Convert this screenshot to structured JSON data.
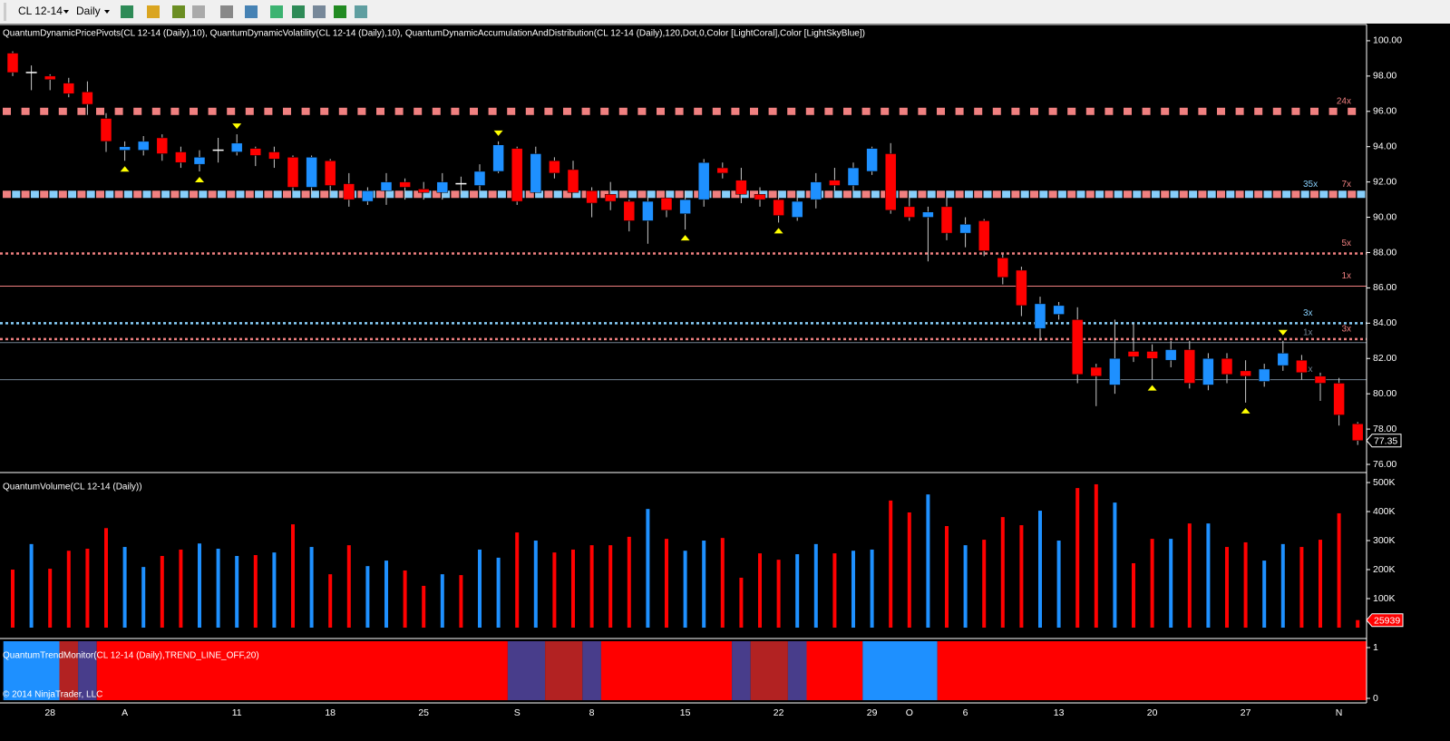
{
  "chart_data": {
    "type": "candlestick",
    "toolbar": {
      "instrument": "CL 12-14",
      "period": "Daily"
    },
    "indicator_label": "QuantumDynamicPricePivots(CL 12-14 (Daily),10), QuantumDynamicVolatility(CL 12-14 (Daily),10), QuantumDynamicAccumulationAndDistribution(CL 12-14 (Daily),120,Dot,0,Color [LightCoral],Color [LightSkyBlue])",
    "copyright": "© 2014 NinjaTrader, LLC",
    "categories": [
      null,
      null,
      "28",
      null,
      null,
      null,
      "A",
      null,
      null,
      null,
      null,
      null,
      "11",
      null,
      null,
      null,
      null,
      "18",
      null,
      null,
      null,
      null,
      "25",
      null,
      null,
      null,
      null,
      "S",
      null,
      null,
      null,
      "8",
      null,
      null,
      null,
      null,
      "15",
      null,
      null,
      null,
      null,
      "22",
      null,
      null,
      null,
      null,
      "29",
      null,
      "O",
      null,
      null,
      "6",
      null,
      null,
      null,
      null,
      "13",
      null,
      null,
      null,
      null,
      "20",
      null,
      null,
      null,
      null,
      "27",
      null,
      null,
      null,
      null,
      "N",
      null
    ],
    "open": [
      99.3,
      98.2,
      98.0,
      97.6,
      97.1,
      95.6,
      93.8,
      93.8,
      94.5,
      93.7,
      93.0,
      93.8,
      93.7,
      93.9,
      93.7,
      93.4,
      91.7,
      93.2,
      91.9,
      90.9,
      91.5,
      92.0,
      91.6,
      91.4,
      91.9,
      91.8,
      92.6,
      93.9,
      91.4,
      93.2,
      92.7,
      91.5,
      91.3,
      90.9,
      89.8,
      91.1,
      90.2,
      91.0,
      92.8,
      92.1,
      91.3,
      91.0,
      90.0,
      91.0,
      92.1,
      91.8,
      92.6,
      93.6,
      90.6,
      90.0,
      90.6,
      89.1,
      89.8,
      87.7,
      87.0,
      83.7,
      84.5,
      84.2,
      81.5,
      80.5,
      82.4,
      82.4,
      81.9,
      82.5,
      80.5,
      82.0,
      81.3,
      80.7,
      81.6,
      81.9,
      81.0,
      80.6,
      78.3
    ],
    "high": [
      99.4,
      98.6,
      98.1,
      97.9,
      97.7,
      95.9,
      94.3,
      94.6,
      94.7,
      94.0,
      93.8,
      94.5,
      94.7,
      94.0,
      94.0,
      93.5,
      93.5,
      93.3,
      92.5,
      91.7,
      92.5,
      92.2,
      92.0,
      92.5,
      92.3,
      93.0,
      94.3,
      94.0,
      94.0,
      93.4,
      93.2,
      91.7,
      92.0,
      91.0,
      91.2,
      91.5,
      91.5,
      93.3,
      93.1,
      92.8,
      91.7,
      91.5,
      91.3,
      92.5,
      92.8,
      93.1,
      94.0,
      94.2,
      91.5,
      90.6,
      91.2,
      90.0,
      89.9,
      87.9,
      87.2,
      85.5,
      85.2,
      84.9,
      81.7,
      84.2,
      84.0,
      82.8,
      83.0,
      83.0,
      82.3,
      82.3,
      81.9,
      81.7,
      83.0,
      82.2,
      81.2,
      80.9,
      78.4
    ],
    "low": [
      98.0,
      97.2,
      97.2,
      96.8,
      95.8,
      93.7,
      93.2,
      93.5,
      93.2,
      92.8,
      92.6,
      93.1,
      93.5,
      92.9,
      92.8,
      91.5,
      91.3,
      91.2,
      90.6,
      90.7,
      90.7,
      91.0,
      91.0,
      91.0,
      91.3,
      91.5,
      92.5,
      90.7,
      91.3,
      92.2,
      91.2,
      90.0,
      90.4,
      89.2,
      88.5,
      90.0,
      89.3,
      90.6,
      92.2,
      90.8,
      90.6,
      89.7,
      89.8,
      90.5,
      91.5,
      91.5,
      92.4,
      90.2,
      89.8,
      87.5,
      88.7,
      88.3,
      87.8,
      86.2,
      84.4,
      83.0,
      84.2,
      80.6,
      79.3,
      80.0,
      81.8,
      80.8,
      81.5,
      80.3,
      80.2,
      80.6,
      79.5,
      80.4,
      81.3,
      80.8,
      79.6,
      78.2,
      77.1
    ],
    "close": [
      98.2,
      98.2,
      97.8,
      97.0,
      96.4,
      94.3,
      94.0,
      94.3,
      93.6,
      93.1,
      93.4,
      93.8,
      94.2,
      93.5,
      93.3,
      91.7,
      93.4,
      91.8,
      91.0,
      91.5,
      92.0,
      91.7,
      91.4,
      92.0,
      91.9,
      92.6,
      94.1,
      90.9,
      93.6,
      92.5,
      91.4,
      90.8,
      90.9,
      89.8,
      90.9,
      90.4,
      91.0,
      93.1,
      92.5,
      91.3,
      91.0,
      90.1,
      90.9,
      92.0,
      91.8,
      92.8,
      93.9,
      90.4,
      90.0,
      90.3,
      89.1,
      89.6,
      88.1,
      86.6,
      85.0,
      85.1,
      85.0,
      81.1,
      81.0,
      82.0,
      82.1,
      82.0,
      82.5,
      80.6,
      82.0,
      81.1,
      81.0,
      81.4,
      82.3,
      81.2,
      80.6,
      78.8,
      77.35
    ],
    "up_color": "#1e90ff",
    "down_color": "#ff0000",
    "doji_color": "#ffffff",
    "wick_color": "#c8c8c8",
    "ylim": [
      75.59,
      100.87
    ],
    "yticks": [
      {
        "value": 100,
        "label": "100.00"
      },
      {
        "value": 98,
        "label": "98.00"
      },
      {
        "value": 96,
        "label": "96.00"
      },
      {
        "value": 94,
        "label": "94.00"
      },
      {
        "value": 92,
        "label": "92.00"
      },
      {
        "value": 90,
        "label": "90.00"
      },
      {
        "value": 88,
        "label": "88.00"
      },
      {
        "value": 86,
        "label": "86.00"
      },
      {
        "value": 84,
        "label": "84.00"
      },
      {
        "value": 82,
        "label": "82.00"
      },
      {
        "value": 80,
        "label": "80.00"
      },
      {
        "value": 78,
        "label": "78.00"
      },
      {
        "value": 76,
        "label": "76.00"
      }
    ],
    "levels": [
      {
        "value": 96.0,
        "color": "#f08080",
        "style": "square",
        "label": "24x"
      },
      {
        "value": 91.3,
        "color": "#f08080",
        "style": "square",
        "label": "7x"
      },
      {
        "value": 91.3,
        "color": "#87cefa",
        "style": "square",
        "label": "35x"
      },
      {
        "value": 87.95,
        "color": "#f08080",
        "style": "dot",
        "label": "5x"
      },
      {
        "value": 86.1,
        "color": "#f08080",
        "style": "line",
        "label": "1x"
      },
      {
        "value": 84.0,
        "color": "#87cefa",
        "style": "dot",
        "label": "3x"
      },
      {
        "value": 83.1,
        "color": "#f08080",
        "style": "dot",
        "label": "3x"
      },
      {
        "value": 82.9,
        "color": "#708090",
        "style": "line",
        "label": "1x"
      },
      {
        "value": 80.8,
        "color": "#708090",
        "style": "line",
        "label": "1x"
      }
    ],
    "signals": [
      {
        "bar": 6,
        "side": "below"
      },
      {
        "bar": 10,
        "side": "below"
      },
      {
        "bar": 12,
        "side": "above"
      },
      {
        "bar": 26,
        "side": "above"
      },
      {
        "bar": 36,
        "side": "below"
      },
      {
        "bar": 41,
        "side": "below"
      },
      {
        "bar": 61,
        "side": "below"
      },
      {
        "bar": 66,
        "side": "below"
      },
      {
        "bar": 68,
        "side": "above"
      }
    ],
    "signal_color": "#ffff00",
    "volume": {
      "title": "QuantumVolume(CL 12-14 (Daily))",
      "values": [
        200000,
        288000,
        203000,
        265000,
        272000,
        343000,
        278000,
        209000,
        247000,
        269000,
        290000,
        272000,
        247000,
        250000,
        259000,
        356000,
        278000,
        184000,
        284000,
        212000,
        231000,
        197000,
        144000,
        184000,
        181000,
        269000,
        241000,
        328000,
        300000,
        259000,
        269000,
        284000,
        284000,
        313000,
        409000,
        306000,
        265000,
        300000,
        309000,
        172000,
        256000,
        234000,
        253000,
        288000,
        256000,
        265000,
        269000,
        438000,
        397000,
        459000,
        350000,
        284000,
        303000,
        381000,
        353000,
        403000,
        300000,
        481000,
        494000,
        431000,
        222000,
        306000,
        306000,
        359000,
        359000,
        278000,
        294000,
        231000,
        288000,
        278000,
        303000,
        394000,
        25939
      ],
      "colors": [
        "#ff0000",
        "#1e90ff",
        "#ff0000",
        "#ff0000",
        "#ff0000",
        "#ff0000",
        "#1e90ff",
        "#1e90ff",
        "#ff0000",
        "#ff0000",
        "#1e90ff",
        "#1e90ff",
        "#1e90ff",
        "#ff0000",
        "#1e90ff",
        "#ff0000",
        "#1e90ff",
        "#ff0000",
        "#ff0000",
        "#1e90ff",
        "#1e90ff",
        "#ff0000",
        "#ff0000",
        "#1e90ff",
        "#ff0000",
        "#1e90ff",
        "#1e90ff",
        "#ff0000",
        "#1e90ff",
        "#ff0000",
        "#ff0000",
        "#ff0000",
        "#ff0000",
        "#ff0000",
        "#1e90ff",
        "#ff0000",
        "#1e90ff",
        "#1e90ff",
        "#ff0000",
        "#ff0000",
        "#ff0000",
        "#ff0000",
        "#1e90ff",
        "#1e90ff",
        "#ff0000",
        "#1e90ff",
        "#1e90ff",
        "#ff0000",
        "#ff0000",
        "#1e90ff",
        "#ff0000",
        "#1e90ff",
        "#ff0000",
        "#ff0000",
        "#ff0000",
        "#1e90ff",
        "#1e90ff",
        "#ff0000",
        "#ff0000",
        "#1e90ff",
        "#ff0000",
        "#ff0000",
        "#1e90ff",
        "#ff0000",
        "#1e90ff",
        "#ff0000",
        "#ff0000",
        "#1e90ff",
        "#1e90ff",
        "#ff0000",
        "#ff0000",
        "#ff0000",
        "#ff0000"
      ],
      "ylim": [
        0,
        522000
      ],
      "yticks": [
        {
          "value": 500000,
          "label": "500K"
        },
        {
          "value": 400000,
          "label": "400K"
        },
        {
          "value": 300000,
          "label": "300K"
        },
        {
          "value": 200000,
          "label": "200K"
        },
        {
          "value": 100000,
          "label": "100K"
        }
      ]
    },
    "trend": {
      "title": "QuantumTrendMonitor(CL 12-14 (Daily),TREND_LINE_OFF,20)",
      "ylim": [
        -0.036,
        1.125
      ],
      "yticks": [
        1,
        0
      ],
      "segments": [
        {
          "from": 0,
          "to": 2,
          "color": "#1e90ff"
        },
        {
          "from": 3,
          "to": 3,
          "color": "#b22222"
        },
        {
          "from": 4,
          "to": 4,
          "color": "#483d8b"
        },
        {
          "from": 5,
          "to": 26,
          "color": "#ff0000"
        },
        {
          "from": 27,
          "to": 28,
          "color": "#483d8b"
        },
        {
          "from": 29,
          "to": 30,
          "color": "#b22222"
        },
        {
          "from": 31,
          "to": 31,
          "color": "#483d8b"
        },
        {
          "from": 32,
          "to": 38,
          "color": "#ff0000"
        },
        {
          "from": 39,
          "to": 39,
          "color": "#483d8b"
        },
        {
          "from": 40,
          "to": 41,
          "color": "#b22222"
        },
        {
          "from": 42,
          "to": 42,
          "color": "#483d8b"
        },
        {
          "from": 43,
          "to": 45,
          "color": "#ff0000"
        },
        {
          "from": 46,
          "to": 49,
          "color": "#1e90ff"
        },
        {
          "from": 50,
          "to": 72,
          "color": "#ff0000"
        }
      ]
    }
  }
}
